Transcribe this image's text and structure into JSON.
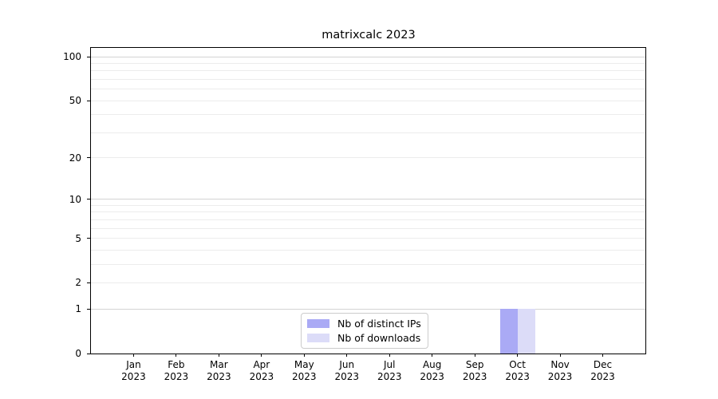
{
  "chart_data": {
    "type": "bar",
    "title": "matrixcalc 2023",
    "categories": [
      {
        "month": "Jan",
        "year": "2023"
      },
      {
        "month": "Feb",
        "year": "2023"
      },
      {
        "month": "Mar",
        "year": "2023"
      },
      {
        "month": "Apr",
        "year": "2023"
      },
      {
        "month": "May",
        "year": "2023"
      },
      {
        "month": "Jun",
        "year": "2023"
      },
      {
        "month": "Jul",
        "year": "2023"
      },
      {
        "month": "Aug",
        "year": "2023"
      },
      {
        "month": "Sep",
        "year": "2023"
      },
      {
        "month": "Oct",
        "year": "2023"
      },
      {
        "month": "Nov",
        "year": "2023"
      },
      {
        "month": "Dec",
        "year": "2023"
      }
    ],
    "series": [
      {
        "name": "Nb of distinct IPs",
        "color": "#aaaaf5",
        "values": [
          0,
          0,
          0,
          0,
          0,
          0,
          0,
          0,
          0,
          1,
          0,
          0
        ]
      },
      {
        "name": "Nb of downloads",
        "color": "#dcdcf8",
        "values": [
          0,
          0,
          0,
          0,
          0,
          0,
          0,
          0,
          0,
          1,
          0,
          0
        ]
      }
    ],
    "y_scale": "log1p",
    "y_ticks": [
      0,
      1,
      2,
      5,
      10,
      20,
      50,
      100
    ],
    "y_major_gridlines": [
      1,
      10,
      100
    ],
    "y_minor_gridlines": [
      2,
      3,
      4,
      5,
      6,
      7,
      8,
      9,
      20,
      30,
      40,
      50,
      60,
      70,
      80,
      90
    ],
    "ylim": [
      0,
      115
    ],
    "grid": true,
    "legend_position": "lower-center",
    "colors": {
      "major_grid": "#d3d3d3",
      "minor_grid": "#ececec",
      "spine": "#000000",
      "text": "#000000",
      "background": "#ffffff"
    }
  }
}
